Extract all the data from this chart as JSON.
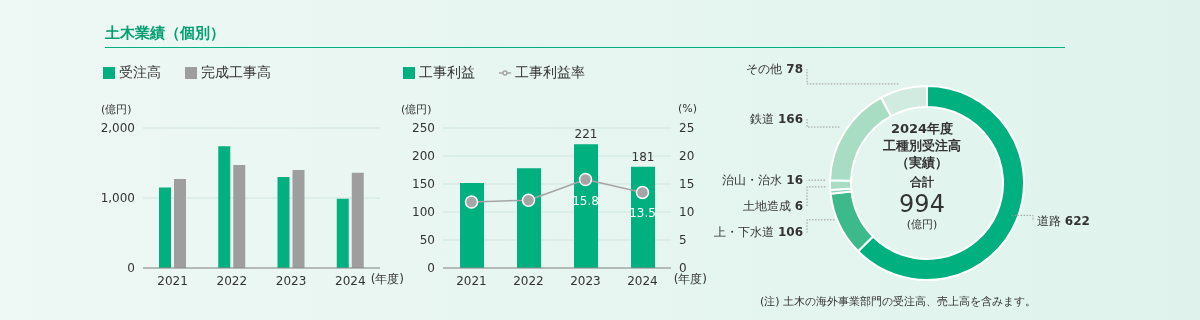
{
  "chart_data": [
    {
      "type": "bar",
      "title": "土木業績（個別）",
      "categories": [
        "2021",
        "2022",
        "2023",
        "2024"
      ],
      "xlabel": "(年度)",
      "ylabel": "(億円)",
      "ylim": [
        0,
        2000
      ],
      "yticks": [
        0,
        {
          "value": 1000,
          "label": "1,000"
        },
        {
          "value": 2000,
          "label": "2,000"
        }
      ],
      "grid": "y",
      "legend": "top left",
      "series": [
        {
          "name": "受注高",
          "color": "#00b07f",
          "values": [
            1150,
            1740,
            1300,
            990
          ]
        },
        {
          "name": "完成工事高",
          "color": "#9e9e9e",
          "values": [
            1270,
            1470,
            1400,
            1360
          ]
        }
      ]
    },
    {
      "type": "bar",
      "categories": [
        "2021",
        "2022",
        "2023",
        "2024"
      ],
      "xlabel": "(年度)",
      "ylabel": "(億円)",
      "y2label": "(%)",
      "ylim": [
        0,
        250
      ],
      "yticks": [
        0,
        50,
        100,
        150,
        200,
        250
      ],
      "y2lim": [
        0,
        25
      ],
      "y2ticks": [
        0,
        5,
        10,
        15,
        20,
        25
      ],
      "grid": "y",
      "legend": "top left",
      "marker": "circle",
      "series": [
        {
          "name": "工事利益",
          "color": "#00b07f",
          "values": [
            152,
            178,
            221,
            181
          ],
          "value_labels": [
            null,
            null,
            "221",
            "181"
          ]
        },
        {
          "name": "工事利益率",
          "type": "line",
          "axis": "y2",
          "color": "#a5a5a5",
          "values": [
            11.8,
            12.1,
            15.8,
            13.5
          ],
          "value_labels": [
            null,
            null,
            "15.8",
            "13.5"
          ]
        }
      ]
    },
    {
      "type": "donut",
      "title": "2024年度",
      "subtitle": "工種別受注高（実績）",
      "categories": [
        "道路",
        "上・下水道",
        "土地造成",
        "治山・治水",
        "鉄道",
        "その他"
      ],
      "values": [
        622,
        106,
        6,
        16,
        166,
        78
      ],
      "colors": [
        "#00b07f",
        "#3dba8c",
        "#8fd3b5",
        "#a8dcc3",
        "#a8dcc3",
        "#d2ebe0"
      ],
      "data_labels": true,
      "legend": false,
      "annotations": [
        "合計",
        "994",
        "(億円)",
        "(注) 土木の海外事業部門の受注高、売上高を含みます。"
      ]
    }
  ]
}
